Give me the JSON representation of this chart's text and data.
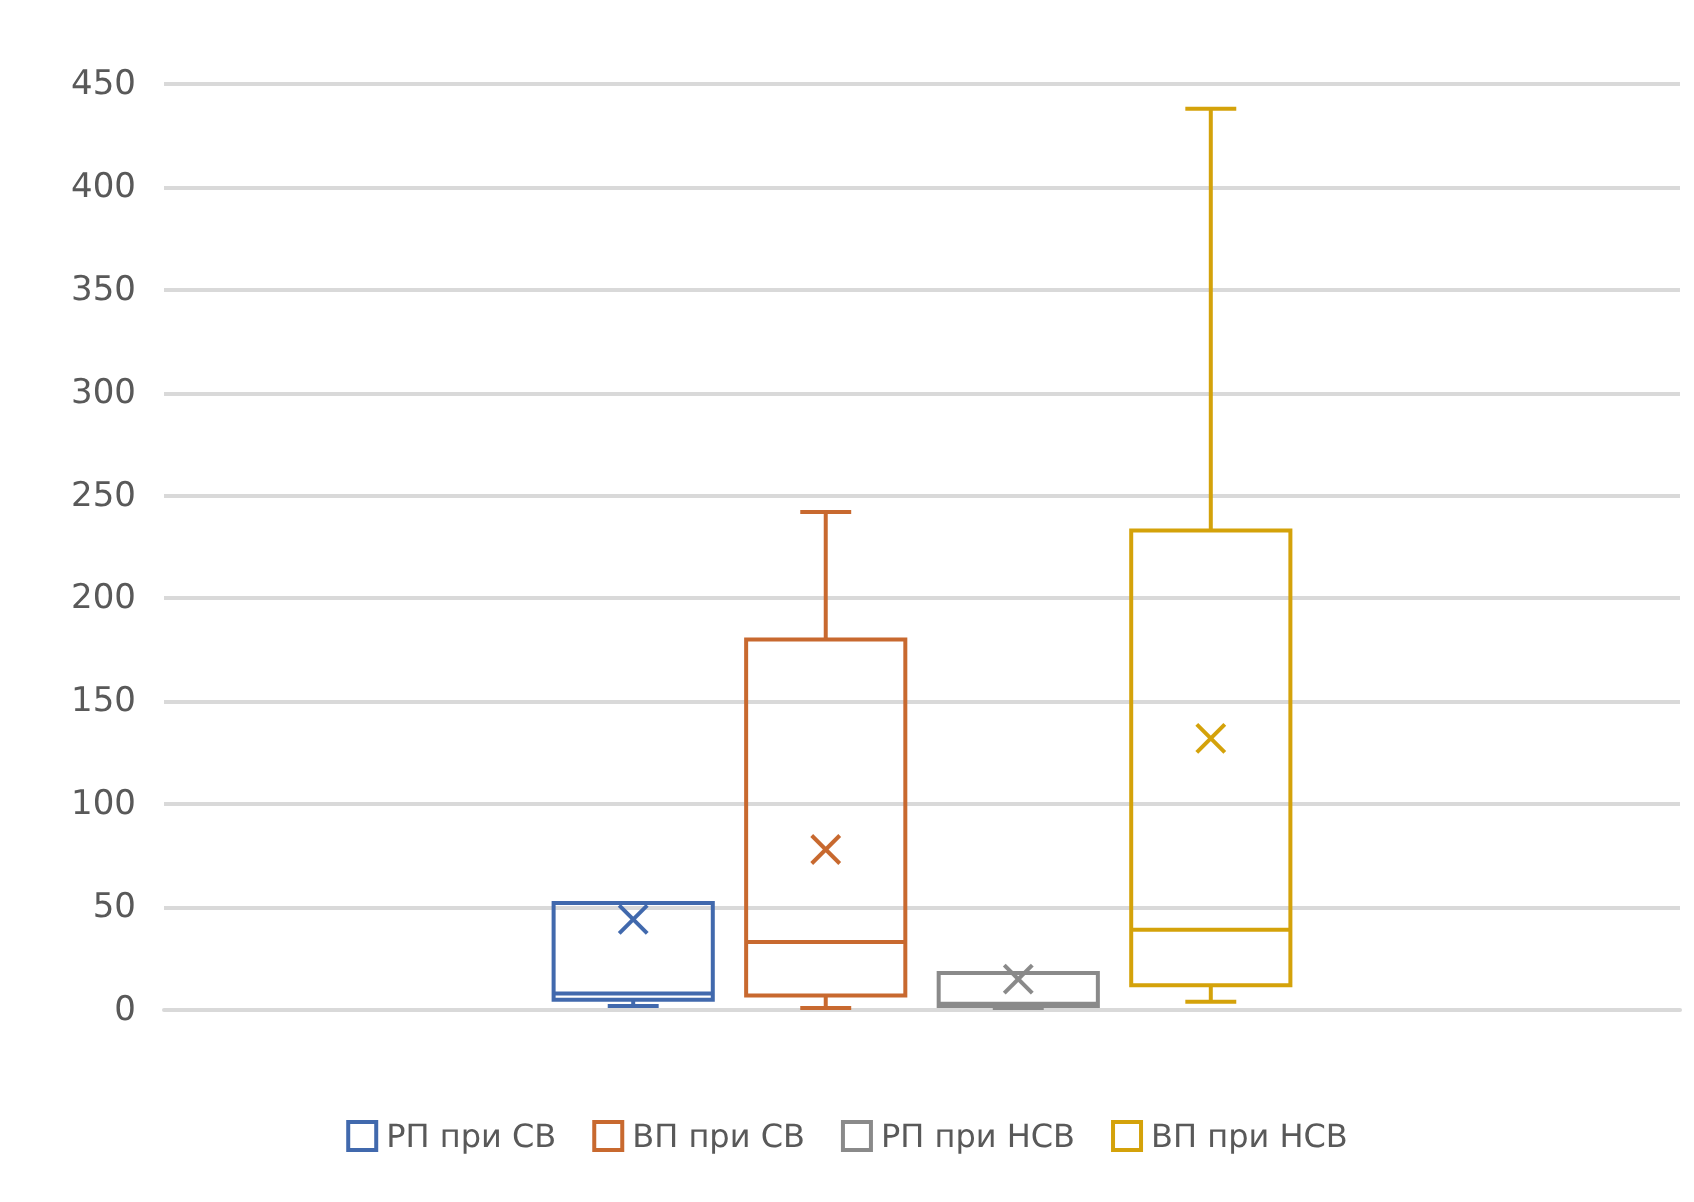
{
  "chart_data": {
    "type": "box",
    "categories": [
      null
    ],
    "series": [
      {
        "name": "РП при СВ",
        "color": "#4169ad",
        "boxes": [
          {
            "low": 2,
            "q1": 5,
            "median": 8,
            "q3": 52,
            "high": 52,
            "mean": 44
          }
        ]
      },
      {
        "name": "ВП при СВ",
        "color": "#c8692f",
        "boxes": [
          {
            "low": 1,
            "q1": 7,
            "median": 33,
            "q3": 180,
            "high": 242,
            "mean": 78
          }
        ]
      },
      {
        "name": "РП при НСВ",
        "color": "#8a8a8a",
        "boxes": [
          {
            "low": 1,
            "q1": 2,
            "median": 3,
            "q3": 18,
            "high": 18,
            "mean": 15
          }
        ]
      },
      {
        "name": "ВП при НСВ",
        "color": "#d4a20a",
        "boxes": [
          {
            "low": 4,
            "q1": 12,
            "median": 39,
            "q3": 233,
            "high": 438,
            "mean": 132
          }
        ]
      }
    ],
    "ylim": [
      0,
      450
    ],
    "yticks": [
      0,
      50,
      100,
      150,
      200,
      250,
      300,
      350,
      400,
      450
    ],
    "grid": "y",
    "legend": "bottom",
    "marker": "cross"
  }
}
